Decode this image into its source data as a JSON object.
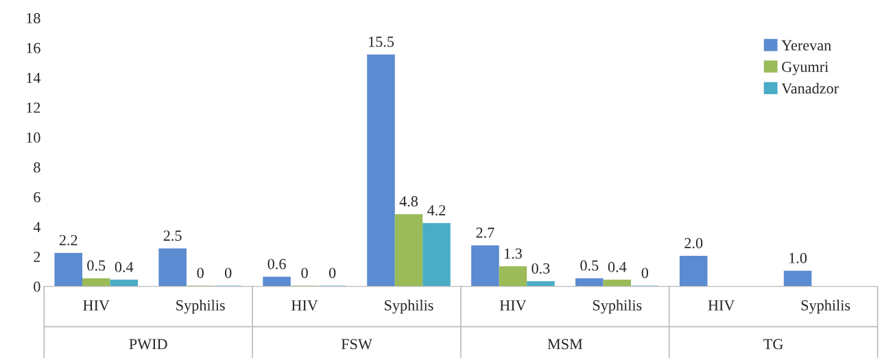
{
  "chart_data": {
    "type": "bar",
    "categories": [
      "HIV",
      "Syphilis",
      "HIV",
      "Syphilis",
      "HIV",
      "Syphilis",
      "HIV",
      "Syphilis"
    ],
    "series": [
      {
        "name": "Yerevan",
        "color": "#5b8bd0",
        "values": [
          2.2,
          2.5,
          0.6,
          15.5,
          2.7,
          0.5,
          2.0,
          1.0
        ],
        "value_labels": [
          "2.2",
          "2.5",
          "0.6",
          "15.5",
          "2.7",
          "0.5",
          "2.0",
          "1.0"
        ]
      },
      {
        "name": "Gyumri",
        "color": "#9bbb59",
        "values": [
          0.5,
          0,
          0,
          4.8,
          1.3,
          0.4,
          null,
          null
        ],
        "value_labels": [
          "0.5",
          "0",
          "0",
          "4.8",
          "1.3",
          "0.4",
          null,
          null
        ]
      },
      {
        "name": "Vanadzor",
        "color": "#4bacc6",
        "values": [
          0.4,
          0,
          0,
          4.2,
          0.3,
          0,
          null,
          null
        ],
        "value_labels": [
          "0.4",
          "0",
          "0",
          "4.2",
          "0.3",
          "0",
          null,
          null
        ]
      }
    ],
    "annotations": [
      "PWID",
      "FSW",
      "MSM",
      "TG"
    ],
    "ylim": [
      0,
      18
    ],
    "yticks": [
      0,
      2,
      4,
      6,
      8,
      10,
      12,
      14,
      16,
      18
    ],
    "grid": false,
    "legend": "top right"
  }
}
